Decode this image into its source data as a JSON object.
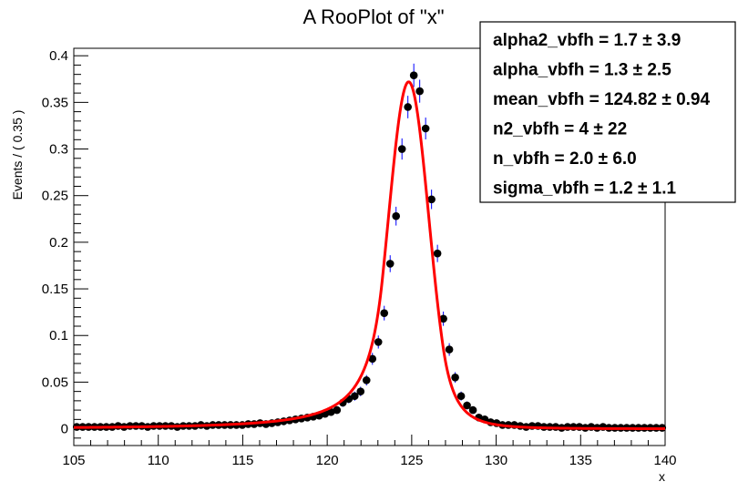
{
  "chart_data": {
    "type": "scatter",
    "title": "A RooPlot of \"x\"",
    "xlabel": "x",
    "ylabel": "Events / ( 0.35 )",
    "xlim": [
      105,
      140
    ],
    "ylim": [
      -0.018,
      0.408
    ],
    "x_ticks": [
      105,
      110,
      115,
      120,
      125,
      130,
      135,
      140
    ],
    "y_ticks": [
      0,
      0.05,
      0.1,
      0.15,
      0.2,
      0.25,
      0.3,
      0.35,
      0.4
    ],
    "x_tick_labels": [
      "105",
      "110",
      "115",
      "120",
      "125",
      "130",
      "135",
      "140"
    ],
    "y_tick_labels": [
      "0",
      "0.05",
      "0.1",
      "0.15",
      "0.2",
      "0.25",
      "0.3",
      "0.35",
      "0.4"
    ],
    "grid": false,
    "colors": {
      "data": "#000000",
      "fit": "#ff0000",
      "errorbar": "#0000ff"
    },
    "series": [
      {
        "kind": "data_points",
        "x": [
          105.175,
          105.525,
          105.875,
          106.225,
          106.575,
          106.925,
          107.275,
          107.625,
          107.975,
          108.325,
          108.675,
          109.025,
          109.375,
          109.725,
          110.075,
          110.425,
          110.775,
          111.125,
          111.475,
          111.825,
          112.175,
          112.525,
          112.875,
          113.225,
          113.575,
          113.925,
          114.275,
          114.625,
          114.975,
          115.325,
          115.675,
          116.025,
          116.375,
          116.725,
          117.075,
          117.425,
          117.775,
          118.125,
          118.475,
          118.825,
          119.175,
          119.525,
          119.875,
          120.225,
          120.575,
          120.925,
          121.275,
          121.625,
          121.975,
          122.325,
          122.675,
          123.025,
          123.375,
          123.725,
          124.075,
          124.425,
          124.775,
          125.125,
          125.475,
          125.825,
          126.175,
          126.525,
          126.875,
          127.225,
          127.575,
          127.925,
          128.275,
          128.625,
          128.975,
          129.325,
          129.675,
          130.025,
          130.375,
          130.725,
          131.075,
          131.425,
          131.775,
          132.125,
          132.475,
          132.825,
          133.175,
          133.525,
          133.875,
          134.225,
          134.575,
          134.925,
          135.275,
          135.625,
          135.975,
          136.325,
          136.675,
          137.025,
          137.375,
          137.725,
          138.075,
          138.425,
          138.775,
          139.125,
          139.475,
          139.825
        ],
        "y": [
          0.002,
          0.002,
          0.002,
          0.002,
          0.002,
          0.002,
          0.002,
          0.003,
          0.002,
          0.003,
          0.003,
          0.003,
          0.002,
          0.003,
          0.003,
          0.003,
          0.003,
          0.002,
          0.003,
          0.003,
          0.003,
          0.004,
          0.003,
          0.004,
          0.004,
          0.004,
          0.004,
          0.004,
          0.004,
          0.005,
          0.005,
          0.006,
          0.005,
          0.006,
          0.007,
          0.008,
          0.009,
          0.01,
          0.011,
          0.012,
          0.013,
          0.014,
          0.016,
          0.018,
          0.02,
          0.028,
          0.032,
          0.035,
          0.04,
          0.052,
          0.075,
          0.093,
          0.124,
          0.177,
          0.228,
          0.3,
          0.345,
          0.379,
          0.362,
          0.322,
          0.246,
          0.188,
          0.118,
          0.085,
          0.055,
          0.035,
          0.025,
          0.02,
          0.012,
          0.01,
          0.007,
          0.006,
          0.004,
          0.004,
          0.004,
          0.003,
          0.002,
          0.003,
          0.003,
          0.002,
          0.002,
          0.002,
          0.001,
          0.002,
          0.002,
          0.002,
          0.001,
          0.002,
          0.001,
          0.002,
          0.001,
          0.001,
          0.001,
          0.001,
          0.001,
          0.001,
          0.001,
          0.001,
          0.001,
          0.001
        ]
      },
      {
        "kind": "fit_curve",
        "model": "double_crystal_ball",
        "normalization_peak": 0.372,
        "params": {
          "mean": 124.82,
          "sigma": 1.2,
          "alpha": 1.3,
          "n": 2.0,
          "alpha2": 1.7,
          "n2": 4
        }
      }
    ],
    "legend_position": "top-right"
  },
  "stats_box": {
    "lines": [
      {
        "label": "alpha2_vbfh = ",
        "value": "1.7 ± 3.9"
      },
      {
        "label": "alpha_vbfh = ",
        "value": "1.3 ± 2.5"
      },
      {
        "label": "mean_vbfh = ",
        "value": "124.82 ± 0.94"
      },
      {
        "label": "n2_vbfh = ",
        "value": "4 ± 22"
      },
      {
        "label": "n_vbfh = ",
        "value": "2.0 ± 6.0"
      },
      {
        "label": "sigma_vbfh = ",
        "value": "1.2 ± 1.1"
      }
    ]
  }
}
